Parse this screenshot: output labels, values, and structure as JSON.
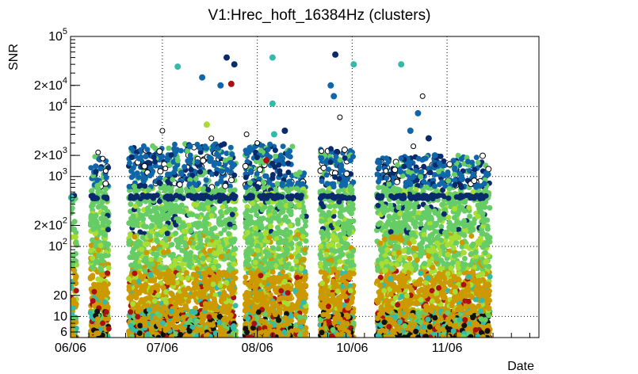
{
  "chart_data": {
    "type": "scatter",
    "title": "V1:Hrec_hoft_16384Hz (clusters)",
    "xlabel": "Date",
    "ylabel": "SNR",
    "yscale": "log",
    "ylim": [
      5,
      100000
    ],
    "xlim_days": [
      0,
      153
    ],
    "grid": true,
    "x_ticks": [
      {
        "label": "06/06",
        "day": 0
      },
      {
        "label": "07/06",
        "day": 30
      },
      {
        "label": "08/06",
        "day": 61
      },
      {
        "label": "10/06",
        "day": 92
      },
      {
        "label": "11/06",
        "day": 123
      }
    ],
    "x_major_grid_days": [
      0,
      30,
      61,
      92,
      123,
      153
    ],
    "y_ticks": [
      {
        "label": "6",
        "value": 6
      },
      {
        "label": "10",
        "value": 10
      },
      {
        "label": "20",
        "value": 20
      },
      {
        "label": "10",
        "sup": "2",
        "value": 100
      },
      {
        "label": "2×10",
        "sup": "2",
        "value": 200
      },
      {
        "label": "10",
        "sup": "3",
        "value": 1000
      },
      {
        "label": "2×10",
        "sup": "3",
        "value": 2000
      },
      {
        "label": "10",
        "sup": "4",
        "value": 10000
      },
      {
        "label": "2×10",
        "sup": "4",
        "value": 20000
      },
      {
        "label": "10",
        "sup": "5",
        "value": 100000
      }
    ],
    "y_major_grid": [
      10,
      100,
      1000,
      10000
    ],
    "colors": {
      "low": "#cc9900",
      "mid_low": "#a8dd33",
      "mid": "#66cc66",
      "mid_high": "#33bbaa",
      "high": "#1166aa",
      "very_high": "#0a2b6b",
      "red": "#aa1111",
      "black": "#111111",
      "open": "#ffffff"
    },
    "segments": [
      {
        "start": 0.0,
        "end": 2.0,
        "density": 90,
        "maxSnr": 500
      },
      {
        "start": 6.5,
        "end": 12.5,
        "density": 420,
        "maxSnr": 2000
      },
      {
        "start": 19.0,
        "end": 54.0,
        "density": 2200,
        "maxSnr": 3000
      },
      {
        "start": 57.0,
        "end": 72.5,
        "density": 1100,
        "maxSnr": 3000
      },
      {
        "start": 73.5,
        "end": 77.0,
        "density": 260,
        "maxSnr": 1200
      },
      {
        "start": 81.5,
        "end": 92.5,
        "density": 800,
        "maxSnr": 2500
      },
      {
        "start": 100.0,
        "end": 122.5,
        "density": 1500,
        "maxSnr": 2000
      },
      {
        "start": 123.0,
        "end": 137.0,
        "density": 900,
        "maxSnr": 2000
      }
    ],
    "highlights": [
      {
        "day": 0.2,
        "snr": 500,
        "color": "mid_high"
      },
      {
        "day": 9.0,
        "snr": 2200,
        "color": "open"
      },
      {
        "day": 10.5,
        "snr": 1800,
        "color": "open"
      },
      {
        "day": 11.5,
        "snr": 1200,
        "color": "open"
      },
      {
        "day": 30.0,
        "snr": 4500,
        "color": "open"
      },
      {
        "day": 31.0,
        "snr": 1300,
        "color": "open"
      },
      {
        "day": 35.0,
        "snr": 37000,
        "color": "mid_high"
      },
      {
        "day": 39.0,
        "snr": 2700,
        "color": "high"
      },
      {
        "day": 43.0,
        "snr": 26000,
        "color": "high"
      },
      {
        "day": 44.5,
        "snr": 5500,
        "color": "mid_low"
      },
      {
        "day": 46.0,
        "snr": 3500,
        "color": "open"
      },
      {
        "day": 49.0,
        "snr": 20000,
        "color": "high"
      },
      {
        "day": 51.0,
        "snr": 50000,
        "color": "very_high"
      },
      {
        "day": 52.5,
        "snr": 21000,
        "color": "red"
      },
      {
        "day": 53.5,
        "snr": 40000,
        "color": "very_high"
      },
      {
        "day": 57.5,
        "snr": 4000,
        "color": "open"
      },
      {
        "day": 61.0,
        "snr": 3000,
        "color": "open"
      },
      {
        "day": 64.0,
        "snr": 1700,
        "color": "red"
      },
      {
        "day": 66.0,
        "snr": 50000,
        "color": "mid_high"
      },
      {
        "day": 66.0,
        "snr": 11000,
        "color": "mid_high"
      },
      {
        "day": 66.5,
        "snr": 4000,
        "color": "mid_high"
      },
      {
        "day": 70.0,
        "snr": 4500,
        "color": "very_high"
      },
      {
        "day": 82.0,
        "snr": 2300,
        "color": "open"
      },
      {
        "day": 85.0,
        "snr": 20000,
        "color": "high"
      },
      {
        "day": 86.0,
        "snr": 14000,
        "color": "high"
      },
      {
        "day": 86.5,
        "snr": 55000,
        "color": "very_high"
      },
      {
        "day": 88.0,
        "snr": 7000,
        "color": "open"
      },
      {
        "day": 92.5,
        "snr": 40000,
        "color": "mid_high"
      },
      {
        "day": 103.0,
        "snr": 1200,
        "color": "open"
      },
      {
        "day": 108.0,
        "snr": 40000,
        "color": "mid_high"
      },
      {
        "day": 111.0,
        "snr": 4500,
        "color": "high"
      },
      {
        "day": 112.0,
        "snr": 2700,
        "color": "open"
      },
      {
        "day": 113.5,
        "snr": 8000,
        "color": "high"
      },
      {
        "day": 115.0,
        "snr": 14000,
        "color": "open"
      },
      {
        "day": 117.0,
        "snr": 3500,
        "color": "very_high"
      },
      {
        "day": 119.0,
        "snr": 2000,
        "color": "high"
      }
    ]
  }
}
